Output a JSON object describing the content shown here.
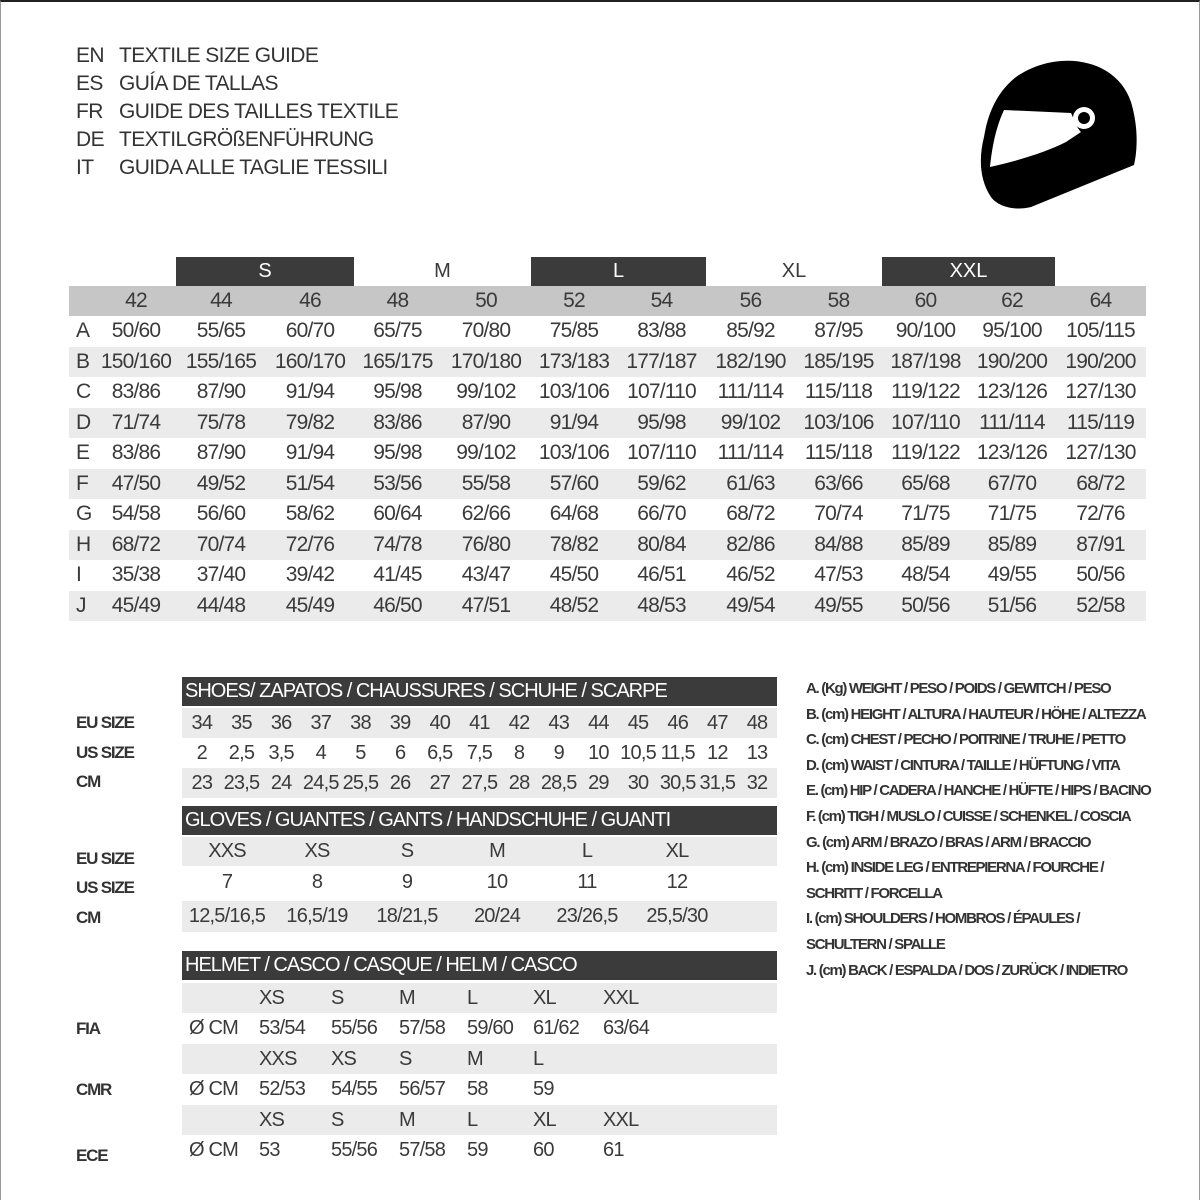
{
  "titles": [
    {
      "code": "EN",
      "text": "TEXTILE SIZE GUIDE"
    },
    {
      "code": "ES",
      "text": "GUÍA DE TALLAS"
    },
    {
      "code": "FR",
      "text": "GUIDE DES TAILLES TEXTILE"
    },
    {
      "code": "DE",
      "text": "TEXTILGRÖßENFÜHRUNG"
    },
    {
      "code": "IT",
      "text": "GUIDA ALLE TAGLIE TESSILI"
    }
  ],
  "icon": "helmet-icon",
  "textile": {
    "size_groups": [
      "S",
      "M",
      "L",
      "XL",
      "XXL"
    ],
    "sizes": [
      "42",
      "44",
      "46",
      "48",
      "50",
      "52",
      "54",
      "56",
      "58",
      "60",
      "62",
      "64"
    ],
    "rows": [
      {
        "label": "A",
        "values": [
          "50/60",
          "55/65",
          "60/70",
          "65/75",
          "70/80",
          "75/85",
          "83/88",
          "85/92",
          "87/95",
          "90/100",
          "95/100",
          "105/115"
        ]
      },
      {
        "label": "B",
        "values": [
          "150/160",
          "155/165",
          "160/170",
          "165/175",
          "170/180",
          "173/183",
          "177/187",
          "182/190",
          "185/195",
          "187/198",
          "190/200",
          "190/200"
        ]
      },
      {
        "label": "C",
        "values": [
          "83/86",
          "87/90",
          "91/94",
          "95/98",
          "99/102",
          "103/106",
          "107/110",
          "111/114",
          "115/118",
          "119/122",
          "123/126",
          "127/130"
        ]
      },
      {
        "label": "D",
        "values": [
          "71/74",
          "75/78",
          "79/82",
          "83/86",
          "87/90",
          "91/94",
          "95/98",
          "99/102",
          "103/106",
          "107/110",
          "111/114",
          "115/119"
        ]
      },
      {
        "label": "E",
        "values": [
          "83/86",
          "87/90",
          "91/94",
          "95/98",
          "99/102",
          "103/106",
          "107/110",
          "111/114",
          "115/118",
          "119/122",
          "123/126",
          "127/130"
        ]
      },
      {
        "label": "F",
        "values": [
          "47/50",
          "49/52",
          "51/54",
          "53/56",
          "55/58",
          "57/60",
          "59/62",
          "61/63",
          "63/66",
          "65/68",
          "67/70",
          "68/72"
        ]
      },
      {
        "label": "G",
        "values": [
          "54/58",
          "56/60",
          "58/62",
          "60/64",
          "62/66",
          "64/68",
          "66/70",
          "68/72",
          "70/74",
          "71/75",
          "71/75",
          "72/76"
        ]
      },
      {
        "label": "H",
        "values": [
          "68/72",
          "70/74",
          "72/76",
          "74/78",
          "76/80",
          "78/82",
          "80/84",
          "82/86",
          "84/88",
          "85/89",
          "85/89",
          "87/91"
        ]
      },
      {
        "label": "I",
        "values": [
          "35/38",
          "37/40",
          "39/42",
          "41/45",
          "43/47",
          "45/50",
          "46/51",
          "46/52",
          "47/53",
          "48/54",
          "49/55",
          "50/56"
        ]
      },
      {
        "label": "J",
        "values": [
          "45/49",
          "44/48",
          "45/49",
          "46/50",
          "47/51",
          "48/52",
          "48/53",
          "49/54",
          "49/55",
          "50/56",
          "51/56",
          "52/58"
        ]
      }
    ]
  },
  "shoes": {
    "title": "SHOES/ ZAPATOS / CHAUSSURES / SCHUHE / SCARPE",
    "labels": [
      "EU SIZE",
      "US SIZE",
      "CM"
    ],
    "eu": [
      "34",
      "35",
      "36",
      "37",
      "38",
      "39",
      "40",
      "41",
      "42",
      "43",
      "44",
      "45",
      "46",
      "47",
      "48"
    ],
    "us": [
      "2",
      "2,5",
      "3,5",
      "4",
      "5",
      "6",
      "6,5",
      "7,5",
      "8",
      "9",
      "10",
      "10,5",
      "11,5",
      "12",
      "13"
    ],
    "cm": [
      "23",
      "23,5",
      "24",
      "24,5",
      "25,5",
      "26",
      "27",
      "27,5",
      "28",
      "28,5",
      "29",
      "30",
      "30,5",
      "31,5",
      "32"
    ]
  },
  "gloves": {
    "title": "GLOVES / GUANTES / GANTS / HANDSCHUHE / GUANTI",
    "labels": [
      "EU SIZE",
      "US SIZE",
      "CM"
    ],
    "eu": [
      "XXS",
      "XS",
      "S",
      "M",
      "L",
      "XL"
    ],
    "us": [
      "7",
      "8",
      "9",
      "10",
      "11",
      "12"
    ],
    "cm": [
      "12,5/16,5",
      "16,5/19",
      "18/21,5",
      "20/24",
      "23/26,5",
      "25,5/30"
    ]
  },
  "helmet": {
    "title": "HELMET / CASCO / CASQUE / HELM / CASCO",
    "unit": "Ø CM",
    "standards": [
      {
        "label": "FIA",
        "sizes": [
          "XS",
          "S",
          "M",
          "L",
          "XL",
          "XXL"
        ],
        "values": [
          "53/54",
          "55/56",
          "57/58",
          "59/60",
          "61/62",
          "63/64"
        ]
      },
      {
        "label": "CMR",
        "sizes": [
          "XXS",
          "XS",
          "S",
          "M",
          "L"
        ],
        "values": [
          "52/53",
          "54/55",
          "56/57",
          "58",
          "59"
        ]
      },
      {
        "label": "ECE",
        "sizes": [
          "XS",
          "S",
          "M",
          "L",
          "XL",
          "XXL"
        ],
        "values": [
          "53",
          "55/56",
          "57/58",
          "59",
          "60",
          "61"
        ]
      }
    ]
  },
  "legend": [
    "A. (Kg) WEIGHT / PESO / POIDS / GEWITCH / PESO",
    "B. (cm) HEIGHT / ALTURA / HAUTEUR / HÖHE / ALTEZZA",
    "C. (cm) CHEST / PECHO / POITRINE / TRUHE / PETTO",
    "D. (cm) WAIST / CINTURA / TAILLE / HÜFTUNG / VITA",
    "E. (cm) HIP / CADERA / HANCHE / HÜFTE / HIPS /  BACINO",
    "F.  (cm) TIGH / MUSLO / CUISSE / SCHENKEL / COSCIA",
    "G. (cm) ARM  / BRAZO / BRAS / ARM / BRACCIO",
    "H. (cm) INSIDE LEG / ENTREPIERNA / FOURCHE /",
    "SCHRITT / FORCELLA",
    "I.  (cm) SHOULDERS / HOMBROS / ÉPAULES /",
    "SCHULTERN / SPALLE",
    "J. (cm) BACK / ESPALDA / DOS / ZURÜCK / INDIETRO"
  ]
}
